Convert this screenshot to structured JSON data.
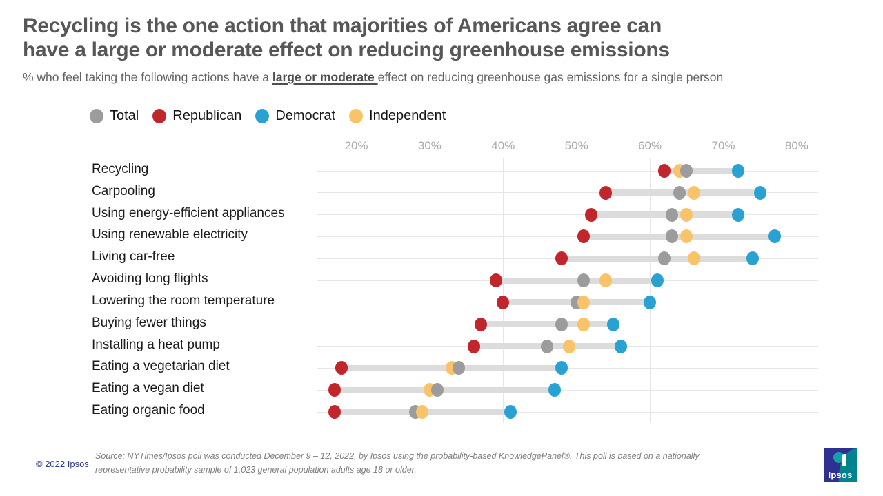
{
  "header": {
    "title_lines": [
      "Recycling is the one action that majorities of Americans agree can",
      "have a large or moderate effect on reducing greenhouse emissions"
    ],
    "subtitle": {
      "prefix": "% who feel taking the following actions have a ",
      "emphasis": "large or moderate ",
      "suffix": "effect on reducing greenhouse gas emissions for a single person"
    }
  },
  "legend": {
    "items": [
      {
        "label": "Total",
        "color": "#9c9c9c"
      },
      {
        "label": "Republican",
        "color": "#c1262d"
      },
      {
        "label": "Democrat",
        "color": "#29a2d3"
      },
      {
        "label": "Independent",
        "color": "#f9c469"
      }
    ]
  },
  "chart_data": {
    "type": "scatter",
    "subtype": "dot-range-plot",
    "categories": [
      "Recycling",
      "Carpooling",
      "Using energy-efficient appliances",
      "Using renewable electricity",
      "Living car-free",
      "Avoiding long flights",
      "Lowering the room temperature",
      "Buying fewer things",
      "Installing a heat pump",
      "Eating a vegetarian diet",
      "Eating a vegan diet",
      "Eating organic food"
    ],
    "series": [
      {
        "name": "Total",
        "color": "#9c9c9c",
        "values": [
          65,
          64,
          63,
          63,
          62,
          51,
          50,
          48,
          46,
          34,
          31,
          28
        ]
      },
      {
        "name": "Republican",
        "color": "#c1262d",
        "values": [
          62,
          54,
          52,
          51,
          48,
          39,
          40,
          37,
          36,
          18,
          17,
          17
        ]
      },
      {
        "name": "Democrat",
        "color": "#29a2d3",
        "values": [
          72,
          75,
          72,
          77,
          74,
          61,
          60,
          55,
          56,
          48,
          47,
          41
        ]
      },
      {
        "name": "Independent",
        "color": "#f9c469",
        "values": [
          64,
          66,
          65,
          65,
          66,
          54,
          51,
          51,
          49,
          33,
          30,
          29
        ]
      }
    ],
    "x_axis": {
      "tick_values": [
        20,
        30,
        40,
        50,
        60,
        70,
        80
      ],
      "tick_labels": [
        "20%",
        "30%",
        "40%",
        "50%",
        "60%",
        "70%",
        "80%"
      ],
      "xlim": [
        14.5,
        83
      ],
      "unit": "%"
    },
    "grid": true,
    "legend_position": "top"
  },
  "footer": {
    "copyright": "© 2022 Ipsos",
    "source_lines": [
      "Source: NYTimes/Ipsos poll was conducted December 9 – 12, 2022, by Ipsos using the probability-based KnowledgePanel®.  This poll is based on a nationally",
      "representative probability sample of 1,023 general population adults age 18 or older."
    ],
    "logo_text": "Ipsos"
  }
}
